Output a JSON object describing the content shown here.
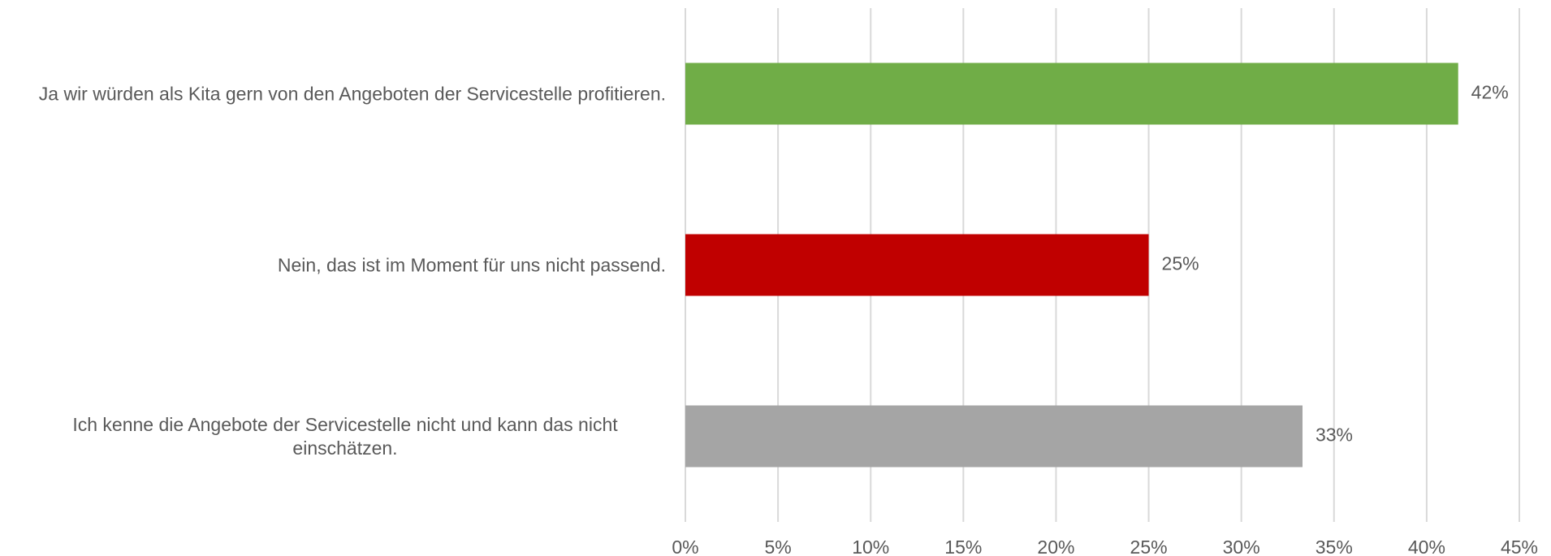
{
  "chart_data": {
    "type": "bar",
    "orientation": "horizontal",
    "categories": [
      "Ja wir würden als Kita gern von den Angeboten der Servicestelle profitieren.",
      "Nein, das ist im Moment für uns nicht passend.",
      "Ich kenne die Angebote der Servicestelle nicht und kann das nicht einschätzen."
    ],
    "values": [
      41.7,
      25,
      33.3
    ],
    "value_labels": [
      "42%",
      "25%",
      "33%"
    ],
    "colors": [
      "#70ad47",
      "#c00000",
      "#a5a5a5"
    ],
    "xlim": [
      0,
      45
    ],
    "xticks": [
      {
        "value": 0,
        "label": "0%"
      },
      {
        "value": 5,
        "label": "5%"
      },
      {
        "value": 10,
        "label": "10%"
      },
      {
        "value": 15,
        "label": "15%"
      },
      {
        "value": 20,
        "label": "20%"
      },
      {
        "value": 25,
        "label": "25%"
      },
      {
        "value": 30,
        "label": "30%"
      },
      {
        "value": 35,
        "label": "35%"
      },
      {
        "value": 40,
        "label": "40%"
      },
      {
        "value": 45,
        "label": "45%"
      }
    ],
    "grid": true
  }
}
